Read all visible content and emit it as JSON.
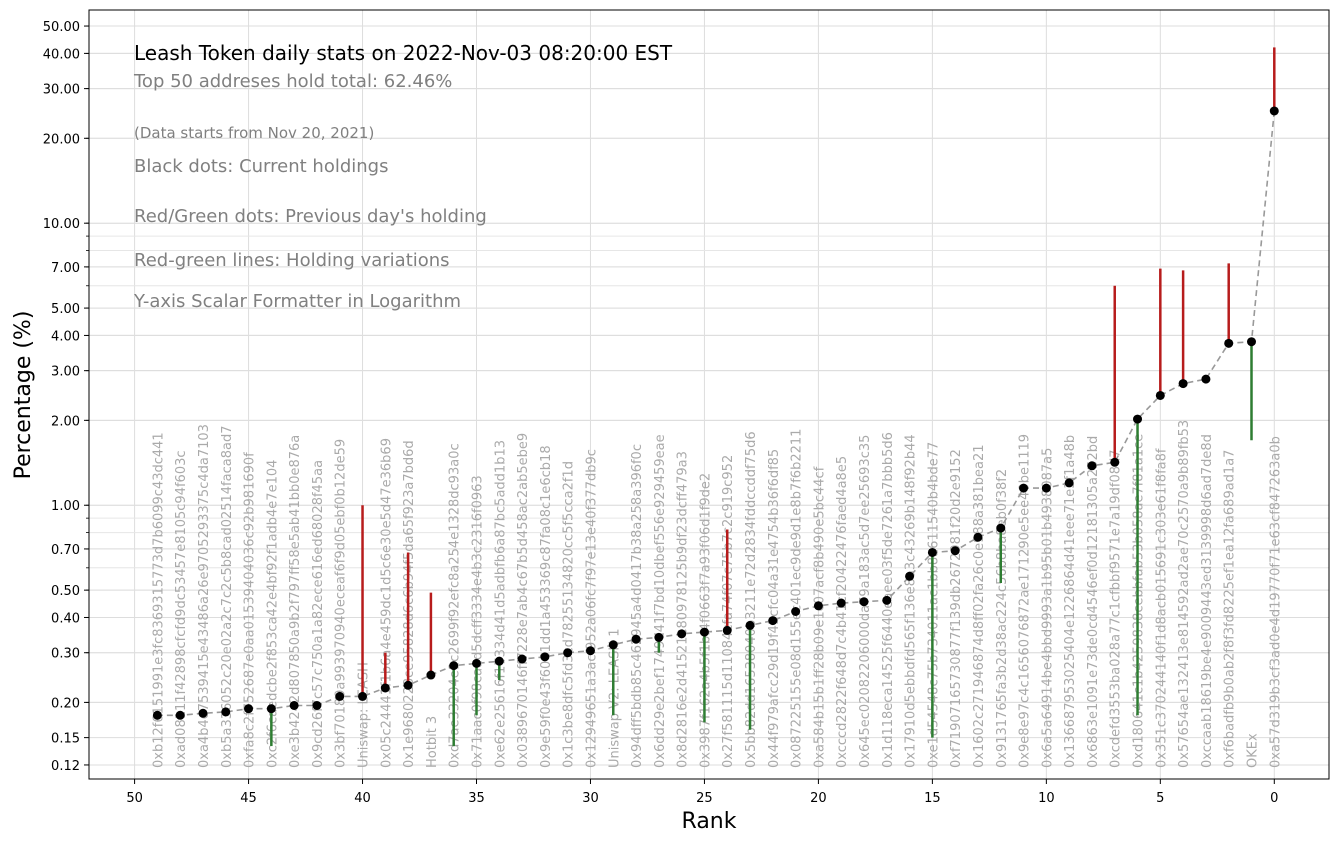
{
  "chart_data": {
    "type": "scatter",
    "title": "Leash Token daily stats on 2022-Nov-03 08:20:00  EST",
    "subtitle": "Top 50 addreses hold total: 62.46%",
    "notes": [
      "(Data starts from Nov 20, 2021)",
      "Black dots: Current holdings",
      "Red/Green dots: Previous day's holding",
      "Red-green lines: Holding variations",
      "Y-axis Scalar Formatter in Logarithm"
    ],
    "xlabel": "Rank",
    "ylabel": "Percentage (%)",
    "xlim": [
      52,
      -2.4
    ],
    "ylim": [
      0.107,
      57
    ],
    "yscale": "log",
    "grid": true,
    "x_ticks": [
      50,
      45,
      40,
      35,
      30,
      25,
      20,
      15,
      10,
      5,
      0
    ],
    "y_ticks": [
      "0.12",
      "0.15",
      "0.20",
      "0.30",
      "0.40",
      "0.50",
      "0.70",
      "1.00",
      "2.00",
      "3.00",
      "4.00",
      "5.00",
      "7.00",
      "10.00",
      "20.00",
      "30.00",
      "40.00",
      "50.00"
    ],
    "y_tick_values": [
      0.12,
      0.15,
      0.2,
      0.3,
      0.4,
      0.5,
      0.7,
      1.0,
      2.0,
      3.0,
      4.0,
      5.0,
      7.0,
      10.0,
      20.0,
      30.0,
      40.0,
      50.0
    ],
    "colors": {
      "current": "#000000",
      "line": "#999999",
      "increase": "#2e7d32",
      "decrease": "#b71c1c",
      "label": "#aaaaaa"
    },
    "points": [
      {
        "rank": 0,
        "value": 25.0,
        "label": "0xa57d319b3cf3ad0e4d19770f71e63cf847263a0b",
        "prev": 42.0
      },
      {
        "rank": 1,
        "value": 3.8,
        "label": "OKEx",
        "prev": 1.7
      },
      {
        "rank": 2,
        "value": 3.75,
        "label": "0xf6badfb9b0ab2f8f3fd8225ef1ea12fa689ad1a7",
        "prev": 7.2
      },
      {
        "rank": 3,
        "value": 2.8,
        "label": "0xccaab18619be4e9009443ed3139998d6ad7de8d",
        "prev": null
      },
      {
        "rank": 4,
        "value": 2.7,
        "label": "0x57654ae132413e814592ad2ae70c2570a9b89fb53",
        "prev": 6.8
      },
      {
        "rank": 5,
        "value": 2.45,
        "label": "0x351c370244140f1d8acb015691c303e61f8fa8f",
        "prev": 6.9
      },
      {
        "rank": 6,
        "value": 2.02,
        "label": "0xd180641c1b4259838cebbfab53b058ae7f81a1ce",
        "prev": 0.18
      },
      {
        "rank": 7,
        "value": 1.42,
        "label": "0xcdefd3553ba028a77c1cfbbf9571e7a19df08d7",
        "prev": 6.0
      },
      {
        "rank": 8,
        "value": 1.38,
        "label": "0x6863e1091e73de0cd4546ef0d12181305a252bd",
        "prev": null
      },
      {
        "rank": 9,
        "value": 1.2,
        "label": "0x136687953025404e1226864d41eee71e3f1a48b",
        "prev": null
      },
      {
        "rank": 10,
        "value": 1.15,
        "label": "0x6a5a64914be4bbd9993a1b95b01b4938087a5",
        "prev": null
      },
      {
        "rank": 11,
        "value": 1.15,
        "label": "0x9e8e97c4c1656076872ae171290e5ee40be1119",
        "prev": null
      },
      {
        "rank": 12,
        "value": 0.83,
        "label": "0x9131765fa3b2d38ac224c56b8ba8eb0f38f2",
        "prev": 0.53
      },
      {
        "rank": 13,
        "value": 0.77,
        "label": "0x1602c271946874d8ff02fa26c0e988a381bea21",
        "prev": null
      },
      {
        "rank": 14,
        "value": 0.69,
        "label": "0xf71907165730877f139db2672981f20d2e9152",
        "prev": null
      },
      {
        "rank": 15,
        "value": 0.68,
        "label": "0xe1d54548c75b734011ac1bb8a611540b4bde77",
        "prev": 0.15
      },
      {
        "rank": 16,
        "value": 0.56,
        "label": "0x17910d5ebbdfd565f136e8a3c43269b148f92b44",
        "prev": null
      },
      {
        "rank": 17,
        "value": 0.46,
        "label": "0x1d118eca14525f6440eaee03f5de7261a7bbb5d6",
        "prev": null
      },
      {
        "rank": 18,
        "value": 0.455,
        "label": "0x645ec02082206000da79a183ac5d7ee25693c35",
        "prev": null
      },
      {
        "rank": 19,
        "value": 0.45,
        "label": "0xcccd2822f648d7c4b41cf20422476faed4a8e5",
        "prev": null
      },
      {
        "rank": 20,
        "value": 0.44,
        "label": "0xa584b15b1ff28b09e1c07acf8b490e5bc44cf",
        "prev": null
      },
      {
        "rank": 21,
        "value": 0.42,
        "label": "0x087225155e08d155ec401ec9de9d1e8b7f6b2211",
        "prev": null
      },
      {
        "rank": 22,
        "value": 0.39,
        "label": "0x44f979afcc29d19f41cfc04a31e4754b36f6df85",
        "prev": null
      },
      {
        "rank": 23,
        "value": 0.375,
        "label": "0x5bb82dd16538040b3211e72d2834fddccddf75d6",
        "prev": 0.16
      },
      {
        "rank": 24,
        "value": 0.36,
        "label": "0x27f581115d11084cfa74f07c75b7c2c919c952",
        "prev": 0.82
      },
      {
        "rank": 25,
        "value": 0.355,
        "label": "0x3987f162a4b5f1bf4f0663f7a93f06d1f9de2",
        "prev": 0.17
      },
      {
        "rank": 26,
        "value": 0.35,
        "label": "0x8d2816e2d41521e80978125b9df23dcff479a3",
        "prev": null
      },
      {
        "rank": 27,
        "value": 0.34,
        "label": "0x6dd29e2bef1749d41f7bd10dbef556e929459eae",
        "prev": 0.3
      },
      {
        "rank": 28,
        "value": 0.335,
        "label": "0x94dff5bdb85c462945a4d0417b38a258a396f0c",
        "prev": null
      },
      {
        "rank": 29,
        "value": 0.32,
        "label": "Uniswap V2: LEASH 1",
        "prev": 0.18
      },
      {
        "rank": 30,
        "value": 0.305,
        "label": "0x12949651a3acf952a06fc7f97e13e40f377db9c",
        "prev": null
      },
      {
        "rank": 31,
        "value": 0.3,
        "label": "0x1c3be8dfc5fd3cd78255134820cc5f5cca2f1d",
        "prev": null
      },
      {
        "rank": 32,
        "value": 0.29,
        "label": "0x9e59f0e43f6041dd1a453369c87fa08c1e6cb18",
        "prev": null
      },
      {
        "rank": 33,
        "value": 0.285,
        "label": "0x0389670146ff7228e7ab4c67b5d458ac2ab5ebe9",
        "prev": null
      },
      {
        "rank": 34,
        "value": 0.28,
        "label": "0xe62e25616f17334d41d5adbfb6a87bc5add1b13",
        "prev": 0.24
      },
      {
        "rank": 35,
        "value": 0.275,
        "label": "0x71aac0f98caad5dcff3334e4b3c2316f0963",
        "prev": 0.18
      },
      {
        "rank": 36,
        "value": 0.27,
        "label": "0xd7ae33204e1c2699f92efc8a254e1328dc93a0c",
        "prev": 0.14
      },
      {
        "rank": 37,
        "value": 0.25,
        "label": "Hotbit 3",
        "prev": 0.49
      },
      {
        "rank": 38,
        "value": 0.23,
        "label": "0x1e9680223ce95828d6c6b94f5da65f923a7bd6d",
        "prev": 0.68
      },
      {
        "rank": 39,
        "value": 0.225,
        "label": "0x05c24441f1b6a4e459dc1d5c6e30e5d47e36b69",
        "prev": 0.3
      },
      {
        "rank": 40,
        "value": 0.21,
        "label": "Uniswap: LEASH",
        "prev": 1.0
      },
      {
        "rank": 41,
        "value": 0.21,
        "label": "0x3bf70189a993970940eceaf6f9d05ebf0b12de59",
        "prev": null
      },
      {
        "rank": 42,
        "value": 0.195,
        "label": "0x9cd26f7c57c750a1a82ece616ed68028f45aa",
        "prev": 0.19
      },
      {
        "rank": 43,
        "value": 0.195,
        "label": "0xe3b4242d807850a9b2f797ff58e5ab41bb0e876a",
        "prev": null
      },
      {
        "rank": 44,
        "value": 0.19,
        "label": "0xc2f6caedcbe2f853ca42e4bf92f1adb4e7e104",
        "prev": 0.14
      },
      {
        "rank": 45,
        "value": 0.19,
        "label": "0xfa8c2f752687e0aa01539404036c92b981690f",
        "prev": null
      },
      {
        "rank": 46,
        "value": 0.185,
        "label": "0xb5a336052c20e02a2c7c2c5b8cad02514faca8ad7",
        "prev": null
      },
      {
        "rank": 47,
        "value": 0.183,
        "label": "0xa4b4e7539415e43486a26e9705293375c4da7103",
        "prev": null
      },
      {
        "rank": 48,
        "value": 0.18,
        "label": "0xad08111f42898cfcfd9dc53457e8105c94f603c",
        "prev": null
      },
      {
        "rank": 49,
        "value": 0.18,
        "label": "0xb12f6151991e3fc8369315773d7b6099c43dc441",
        "prev": null
      }
    ]
  }
}
